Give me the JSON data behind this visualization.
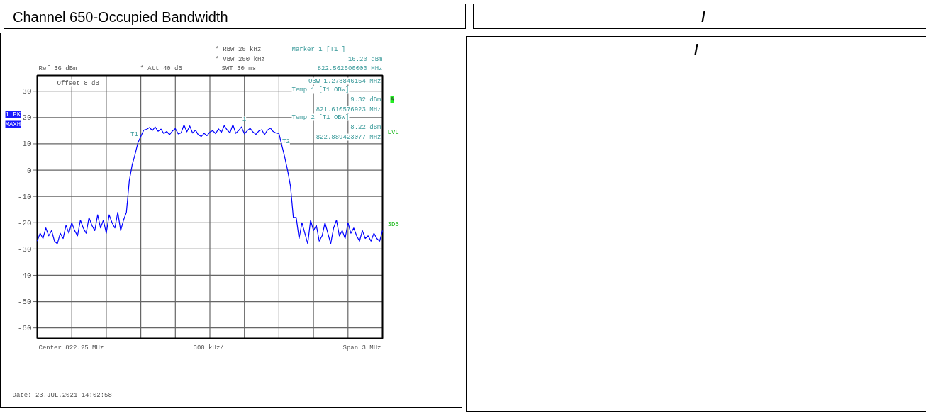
{
  "chart_data": {
    "type": "line",
    "title": "Channel 650-Occupied Bandwidth",
    "subtitle": "/",
    "categories": [
      null,
      null,
      null,
      null,
      null,
      null,
      null,
      null,
      null,
      null,
      null,
      null,
      null,
      null,
      null,
      null,
      null,
      null,
      null,
      null,
      null,
      null,
      null,
      null,
      null,
      null,
      null,
      null,
      null,
      null,
      null,
      null,
      null,
      null,
      null,
      null,
      null,
      null,
      null,
      null,
      null,
      null,
      null,
      null,
      null,
      null,
      null,
      null,
      null,
      null,
      null,
      null,
      null,
      null,
      null,
      null,
      null,
      null,
      null,
      null,
      null,
      null,
      null,
      null,
      null,
      null,
      null,
      null,
      null,
      null,
      null,
      null,
      null,
      null,
      null,
      null,
      null,
      null,
      null,
      null,
      null,
      null,
      null,
      null,
      null,
      null,
      null,
      null,
      null,
      null,
      null,
      null,
      null,
      null,
      null,
      null,
      null,
      null,
      null,
      null,
      null,
      null,
      null,
      null,
      null,
      null,
      null,
      null,
      null,
      null,
      null,
      null,
      null,
      null,
      null,
      null,
      null,
      null,
      null,
      null,
      null
    ],
    "series": [
      {
        "color": "#0000ff",
        "values": [
          -27,
          -24,
          -26,
          -22,
          -25,
          -23,
          -27,
          -28,
          -24,
          -26,
          -21,
          -24,
          -20,
          -23,
          -25,
          -19,
          -22,
          -24,
          -18,
          -21,
          -23,
          -17,
          -22,
          -19,
          -24,
          -17,
          -20,
          -22,
          -16,
          -23,
          -19,
          -16,
          -4,
          2,
          6,
          10.4,
          12.8,
          15.2,
          15.5,
          16.2,
          15.1,
          16.4,
          14.8,
          15.6,
          13.9,
          14.7,
          13.5,
          14.9,
          15.8,
          13.8,
          14.2,
          17.2,
          14.6,
          16.8,
          14.1,
          15.2,
          13.4,
          12.8,
          14.0,
          13.1,
          14.5,
          15.0,
          13.9,
          15.7,
          14.4,
          16.9,
          15.3,
          14.2,
          17.3,
          14.0,
          15.1,
          16.4,
          13.8,
          15.0,
          15.9,
          14.5,
          13.6,
          14.9,
          15.4,
          13.5,
          15.2,
          16.0,
          14.7,
          14.1,
          13.9,
          9.4,
          5,
          0,
          -6,
          -18,
          -18,
          -26,
          -20,
          -24,
          -28,
          -19,
          -23,
          -21,
          -27,
          -25,
          -20,
          -24,
          -28,
          -22,
          -19,
          -25,
          -23,
          -26,
          -20,
          -24,
          -22,
          -25,
          -27,
          -23,
          -26,
          -25,
          -27,
          -24,
          -26,
          -27,
          -23
        ]
      }
    ],
    "ylim": [
      -64,
      36
    ],
    "yticks": [
      30,
      20,
      10,
      0,
      -10,
      -20,
      -30,
      -40,
      -50,
      -60
    ],
    "grid": true,
    "tick_labels": "y",
    "marker": "none",
    "line_style": "solid",
    "annotations": [
      "Ref 36 dBm",
      "Offset 8 dB",
      "* Att 40 dB",
      "* RBW 20 kHz",
      "* VBW 200 kHz",
      "SWT 30 ms",
      "Marker 1 [T1 ]",
      "16.20 dBm",
      "822.562500000 MHz",
      "OBW 1.278846154 MHz",
      "Temp 1 [T1 OBW]",
      "9.32 dBm",
      "821.610576923 MHz",
      "Temp 2 [T1 OBW]",
      "8.22 dBm",
      "822.889423077 MHz",
      "Center 822.25 MHz",
      "300 kHz/",
      "Span 3 MHz",
      "Date: 23.JUL.2021 14:02:58",
      "1 PK",
      "MAXH",
      "A",
      "LVL",
      "3DB",
      "1",
      "T1",
      "T2",
      "/"
    ]
  }
}
